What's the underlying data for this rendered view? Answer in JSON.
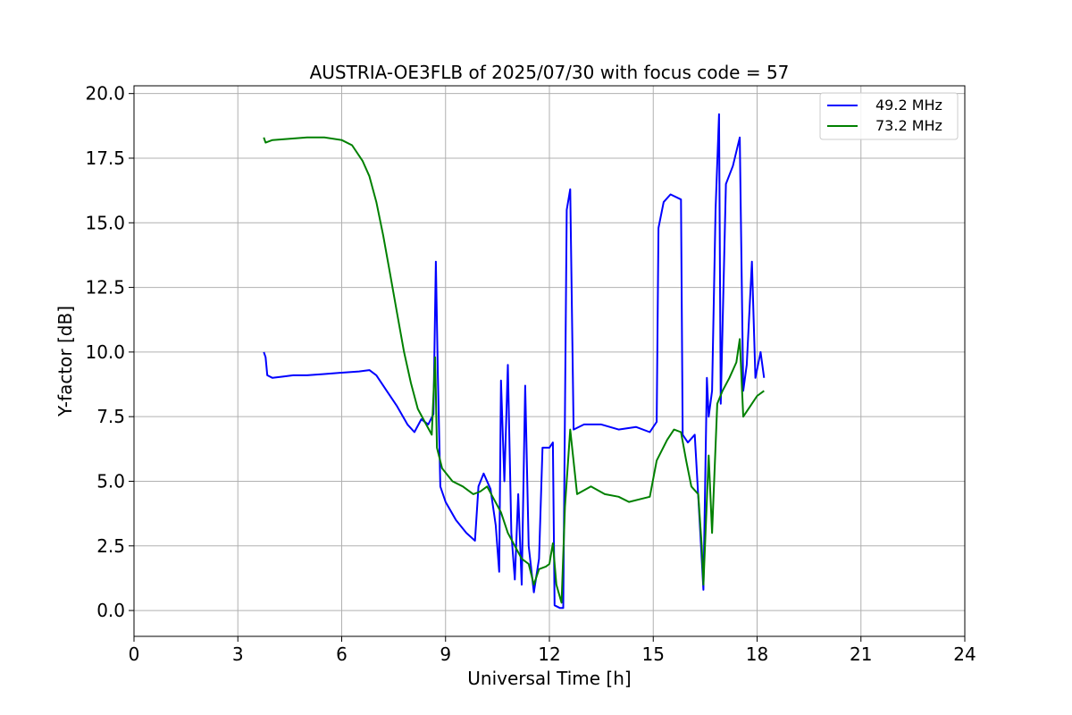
{
  "chart_data": {
    "type": "line",
    "title": "AUSTRIA-OE3FLB of 2025/07/30 with focus code = 57",
    "xlabel": "Universal Time [h]",
    "ylabel": "Y-factor [dB]",
    "xlim": [
      0,
      24
    ],
    "ylim": [
      -1,
      20.3
    ],
    "xticks": [
      0,
      3,
      6,
      9,
      12,
      15,
      18,
      21,
      24
    ],
    "yticks": [
      0.0,
      2.5,
      5.0,
      7.5,
      10.0,
      12.5,
      15.0,
      17.5,
      20.0
    ],
    "xtick_labels": [
      "0",
      "3",
      "6",
      "9",
      "12",
      "15",
      "18",
      "21",
      "24"
    ],
    "ytick_labels": [
      "0.0",
      "2.5",
      "5.0",
      "7.5",
      "10.0",
      "12.5",
      "15.0",
      "17.5",
      "20.0"
    ],
    "grid": true,
    "legend_position": "top-right",
    "series": [
      {
        "name": "49.2 MHz",
        "color": "#0000ff",
        "points": [
          [
            3.75,
            10.0
          ],
          [
            3.8,
            9.8
          ],
          [
            3.85,
            9.1
          ],
          [
            4.0,
            9.0
          ],
          [
            4.3,
            9.05
          ],
          [
            4.6,
            9.1
          ],
          [
            5.0,
            9.1
          ],
          [
            5.5,
            9.15
          ],
          [
            6.0,
            9.2
          ],
          [
            6.5,
            9.25
          ],
          [
            6.8,
            9.3
          ],
          [
            7.0,
            9.1
          ],
          [
            7.3,
            8.5
          ],
          [
            7.6,
            7.9
          ],
          [
            7.9,
            7.2
          ],
          [
            8.1,
            6.9
          ],
          [
            8.3,
            7.4
          ],
          [
            8.5,
            7.2
          ],
          [
            8.65,
            7.6
          ],
          [
            8.72,
            13.5
          ],
          [
            8.78,
            9.0
          ],
          [
            8.85,
            4.8
          ],
          [
            9.0,
            4.2
          ],
          [
            9.3,
            3.5
          ],
          [
            9.6,
            3.0
          ],
          [
            9.85,
            2.7
          ],
          [
            9.95,
            4.8
          ],
          [
            10.1,
            5.3
          ],
          [
            10.3,
            4.7
          ],
          [
            10.45,
            3.3
          ],
          [
            10.55,
            1.5
          ],
          [
            10.6,
            8.9
          ],
          [
            10.7,
            5.0
          ],
          [
            10.8,
            9.5
          ],
          [
            10.9,
            3.0
          ],
          [
            11.0,
            1.2
          ],
          [
            11.1,
            4.5
          ],
          [
            11.2,
            1.0
          ],
          [
            11.3,
            8.7
          ],
          [
            11.4,
            2.5
          ],
          [
            11.55,
            0.7
          ],
          [
            11.7,
            2.0
          ],
          [
            11.8,
            6.3
          ],
          [
            12.0,
            6.3
          ],
          [
            12.1,
            6.5
          ],
          [
            12.15,
            0.2
          ],
          [
            12.3,
            0.1
          ],
          [
            12.4,
            0.1
          ],
          [
            12.5,
            15.5
          ],
          [
            12.6,
            16.3
          ],
          [
            12.7,
            7.0
          ],
          [
            13.0,
            7.2
          ],
          [
            13.5,
            7.2
          ],
          [
            14.0,
            7.0
          ],
          [
            14.5,
            7.1
          ],
          [
            14.9,
            6.9
          ],
          [
            15.1,
            7.3
          ],
          [
            15.15,
            14.8
          ],
          [
            15.3,
            15.8
          ],
          [
            15.5,
            16.1
          ],
          [
            15.8,
            15.9
          ],
          [
            15.85,
            6.8
          ],
          [
            16.0,
            6.5
          ],
          [
            16.2,
            6.8
          ],
          [
            16.35,
            3.2
          ],
          [
            16.45,
            0.8
          ],
          [
            16.55,
            9.0
          ],
          [
            16.6,
            7.5
          ],
          [
            16.7,
            8.5
          ],
          [
            16.8,
            15.5
          ],
          [
            16.9,
            19.2
          ],
          [
            16.95,
            8.0
          ],
          [
            17.1,
            16.5
          ],
          [
            17.3,
            17.2
          ],
          [
            17.5,
            18.3
          ],
          [
            17.6,
            8.5
          ],
          [
            17.7,
            9.5
          ],
          [
            17.85,
            13.5
          ],
          [
            17.95,
            9.0
          ],
          [
            18.1,
            10.0
          ],
          [
            18.2,
            9.0
          ]
        ]
      },
      {
        "name": "73.2 MHz",
        "color": "#008000",
        "points": [
          [
            3.75,
            18.3
          ],
          [
            3.8,
            18.1
          ],
          [
            4.0,
            18.2
          ],
          [
            4.5,
            18.25
          ],
          [
            5.0,
            18.3
          ],
          [
            5.5,
            18.3
          ],
          [
            6.0,
            18.2
          ],
          [
            6.3,
            18.0
          ],
          [
            6.6,
            17.4
          ],
          [
            6.8,
            16.8
          ],
          [
            7.0,
            15.8
          ],
          [
            7.2,
            14.5
          ],
          [
            7.4,
            13.0
          ],
          [
            7.6,
            11.5
          ],
          [
            7.8,
            10.0
          ],
          [
            8.0,
            8.8
          ],
          [
            8.2,
            7.8
          ],
          [
            8.4,
            7.3
          ],
          [
            8.6,
            6.8
          ],
          [
            8.7,
            9.8
          ],
          [
            8.75,
            6.3
          ],
          [
            8.9,
            5.5
          ],
          [
            9.2,
            5.0
          ],
          [
            9.5,
            4.8
          ],
          [
            9.8,
            4.5
          ],
          [
            10.0,
            4.6
          ],
          [
            10.2,
            4.8
          ],
          [
            10.4,
            4.3
          ],
          [
            10.6,
            3.8
          ],
          [
            10.8,
            3.0
          ],
          [
            11.0,
            2.5
          ],
          [
            11.2,
            2.0
          ],
          [
            11.4,
            1.8
          ],
          [
            11.55,
            1.0
          ],
          [
            11.7,
            1.6
          ],
          [
            11.9,
            1.7
          ],
          [
            12.0,
            1.8
          ],
          [
            12.1,
            2.6
          ],
          [
            12.2,
            1.0
          ],
          [
            12.35,
            0.3
          ],
          [
            12.45,
            4.0
          ],
          [
            12.6,
            7.0
          ],
          [
            12.8,
            4.5
          ],
          [
            13.2,
            4.8
          ],
          [
            13.6,
            4.5
          ],
          [
            14.0,
            4.4
          ],
          [
            14.3,
            4.2
          ],
          [
            14.6,
            4.3
          ],
          [
            14.9,
            4.4
          ],
          [
            15.1,
            5.8
          ],
          [
            15.4,
            6.6
          ],
          [
            15.6,
            7.0
          ],
          [
            15.8,
            6.9
          ],
          [
            15.95,
            5.8
          ],
          [
            16.1,
            4.8
          ],
          [
            16.3,
            4.5
          ],
          [
            16.4,
            2.5
          ],
          [
            16.45,
            1.0
          ],
          [
            16.6,
            6.0
          ],
          [
            16.7,
            3.0
          ],
          [
            16.85,
            8.0
          ],
          [
            17.0,
            8.5
          ],
          [
            17.2,
            9.0
          ],
          [
            17.4,
            9.6
          ],
          [
            17.5,
            10.5
          ],
          [
            17.6,
            7.5
          ],
          [
            17.8,
            7.9
          ],
          [
            18.0,
            8.3
          ],
          [
            18.2,
            8.5
          ]
        ]
      }
    ]
  }
}
